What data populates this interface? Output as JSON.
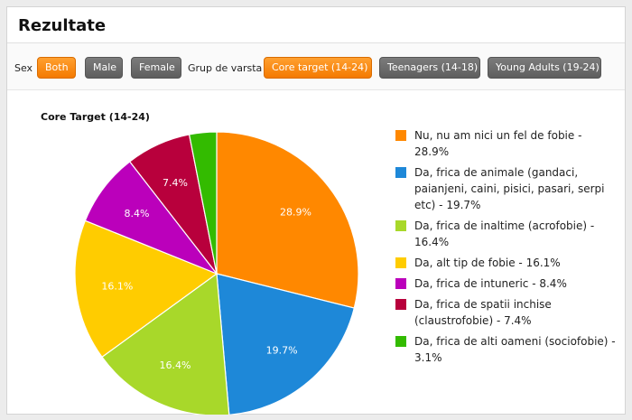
{
  "header": {
    "title": "Rezultate"
  },
  "filters": {
    "sex_label": "Sex",
    "sex_buttons": [
      {
        "label": "Both",
        "active": true
      },
      {
        "label": "Male",
        "active": false
      },
      {
        "label": "Female",
        "active": false
      }
    ],
    "age_label": "Grup de varsta",
    "age_buttons": [
      {
        "label": "Core target (14-24)",
        "active": true
      },
      {
        "label": "Teenagers (14-18)",
        "active": false
      },
      {
        "label": "Young Adults (19-24)",
        "active": false
      }
    ]
  },
  "chart_data": {
    "type": "pie",
    "title": "Core Target (14-24)",
    "legend_position": "right",
    "series": [
      {
        "name": "Nu, nu am nici un fel de fobie",
        "value": 28.9,
        "label": "28.9%",
        "legend": "Nu, nu am nici un fel de fobie - 28.9%",
        "color": "#ff8800"
      },
      {
        "name": "Da, frica de animale (gandaci, paianjeni, caini, pisici, pasari, serpi etc)",
        "value": 19.7,
        "label": "19.7%",
        "legend": "Da, frica de animale (gandaci, paianjeni, caini, pisici, pasari, serpi etc) - 19.7%",
        "color": "#1e88d8"
      },
      {
        "name": "Da, frica de inaltime (acrofobie)",
        "value": 16.4,
        "label": "16.4%",
        "legend": "Da, frica de inaltime (acrofobie) - 16.4%",
        "color": "#a8d82a"
      },
      {
        "name": "Da, alt tip de fobie",
        "value": 16.1,
        "label": "16.1%",
        "legend": "Da, alt tip de fobie - 16.1%",
        "color": "#ffcc00"
      },
      {
        "name": "Da, frica de intuneric",
        "value": 8.4,
        "label": "8.4%",
        "legend": "Da, frica de intuneric - 8.4%",
        "color": "#bb00bb"
      },
      {
        "name": "Da, frica de spatii inchise (claustrofobie)",
        "value": 7.4,
        "label": "7.4%",
        "legend": "Da, frica de spatii inchise (claustrofobie) - 7.4%",
        "color": "#b8003c"
      },
      {
        "name": "Da, frica de alti oameni (sociofobie)",
        "value": 3.1,
        "label": "",
        "legend": "Da, frica de alti oameni (sociofobie) - 3.1%",
        "color": "#33bb00"
      }
    ]
  }
}
